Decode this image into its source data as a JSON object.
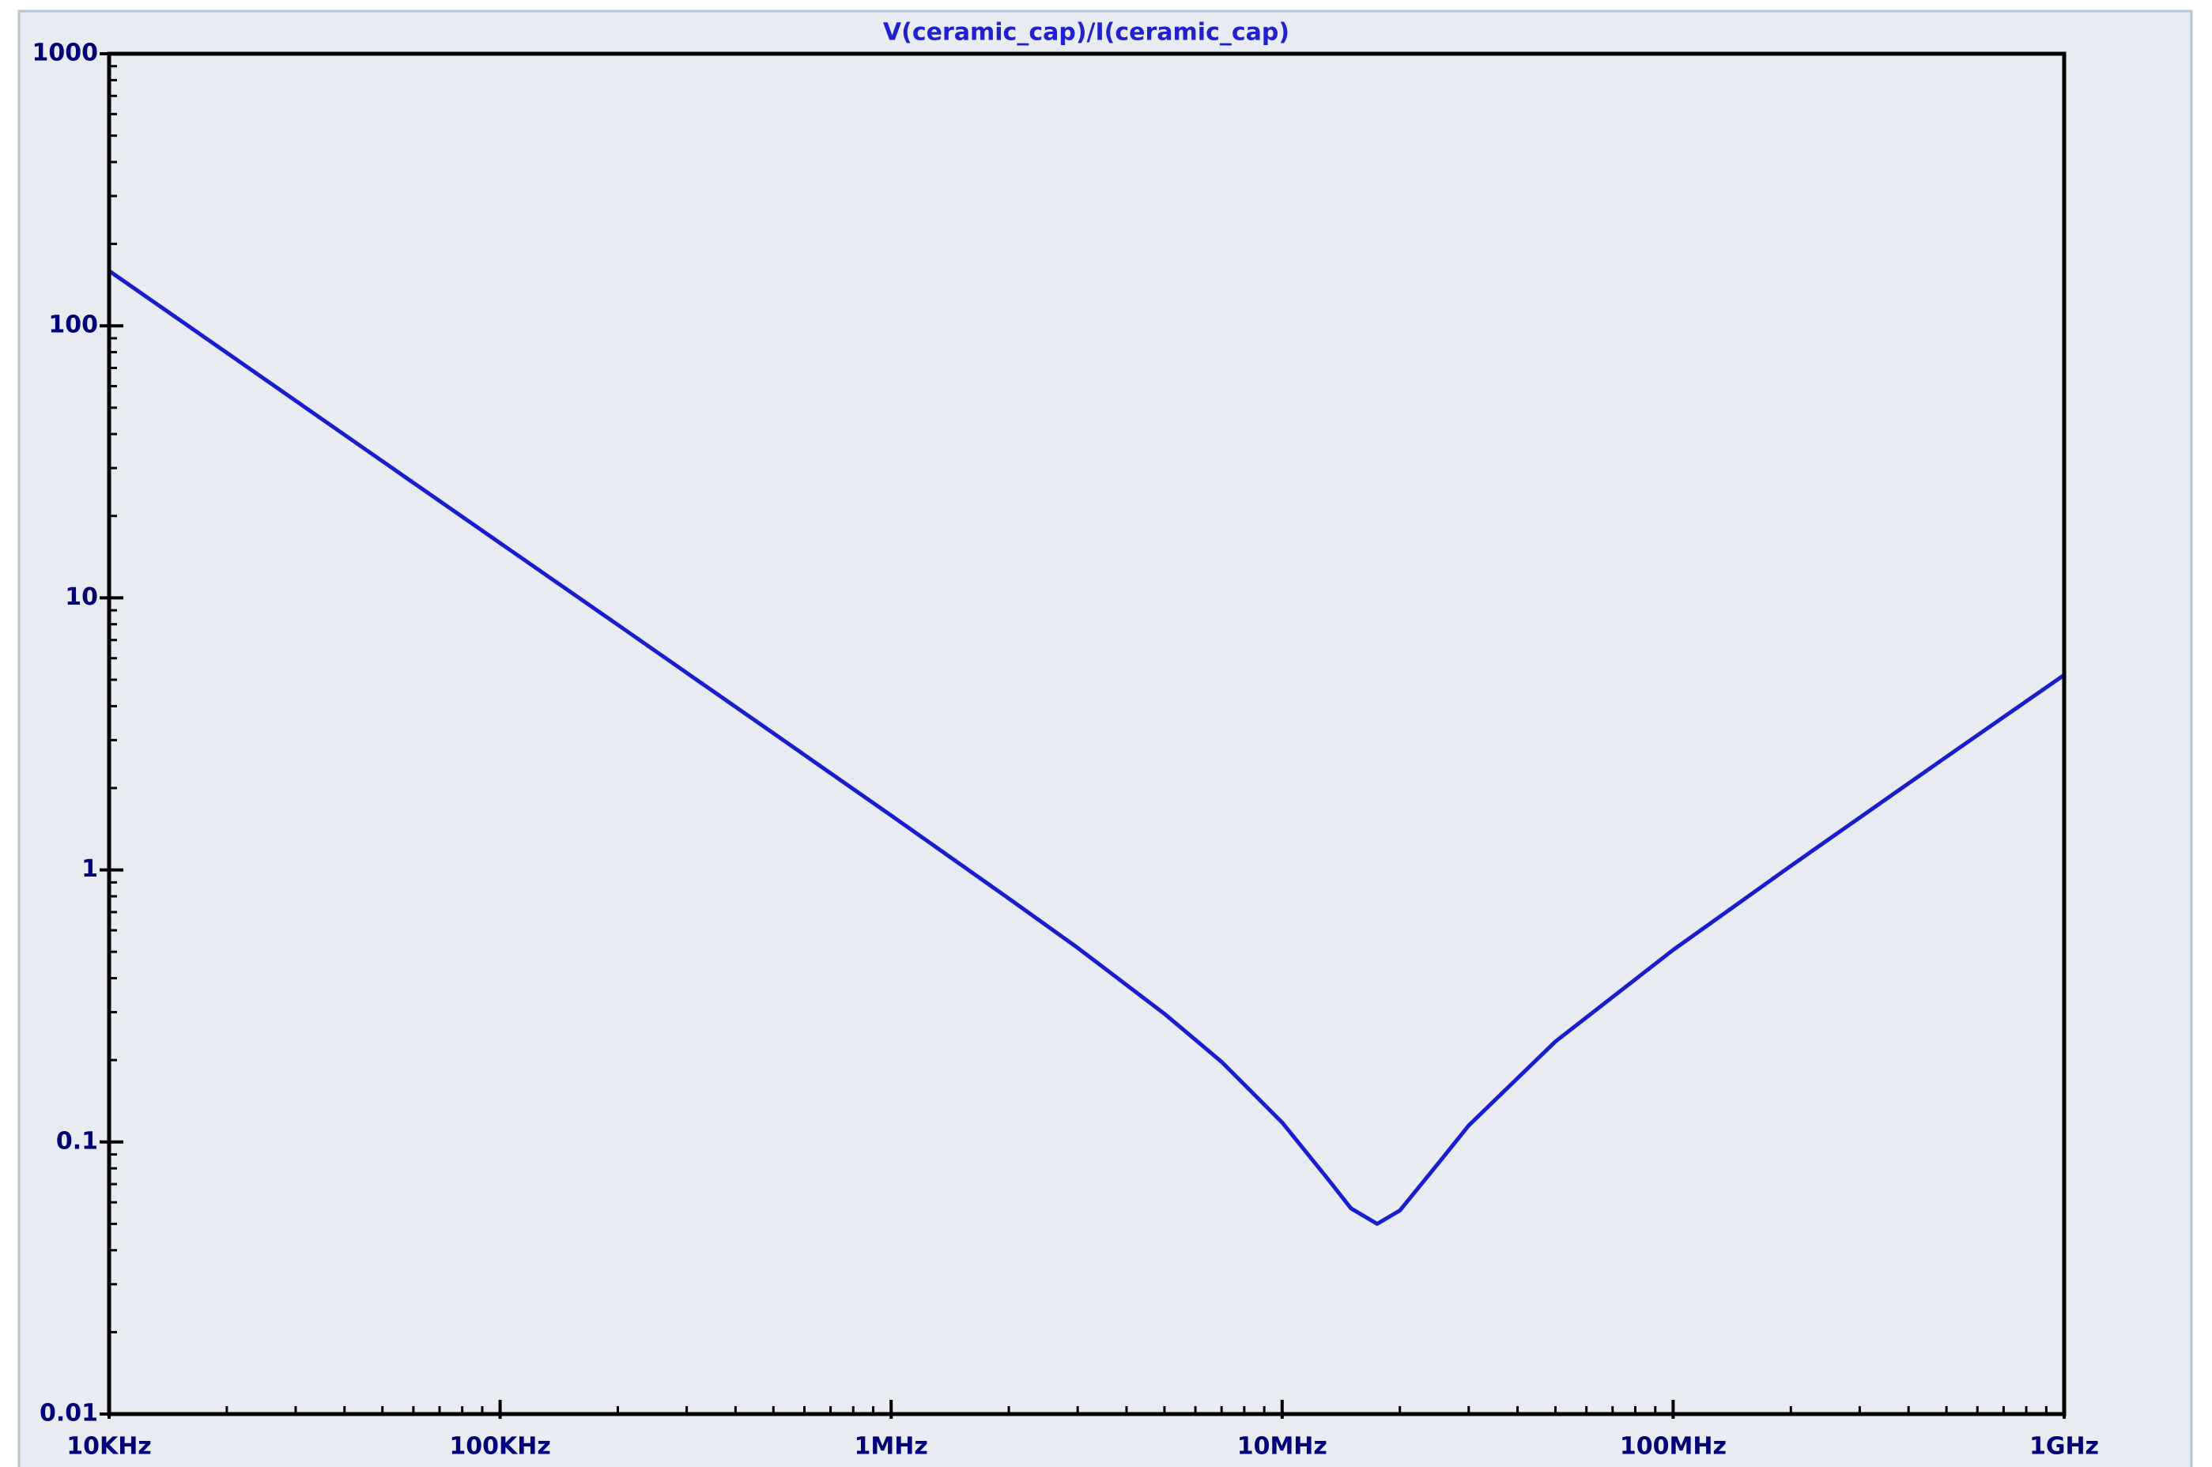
{
  "chart_data": {
    "type": "line",
    "title": "V(ceramic_cap)/I(ceramic_cap)",
    "xscale": "log",
    "yscale": "log",
    "x": [
      10000,
      20000,
      50000,
      100000,
      200000,
      500000,
      1000000,
      2000000,
      3000000,
      5000000,
      7000000,
      10000000,
      13000000,
      15000000,
      17500000,
      20000000,
      25000000,
      30000000,
      50000000,
      100000000,
      200000000,
      500000000,
      1000000000
    ],
    "series": [
      {
        "name": "V(ceramic_cap)/I(ceramic_cap)",
        "color": "#1c1ccf",
        "values": [
          159.2,
          79.6,
          31.8,
          15.9,
          7.96,
          3.18,
          1.586,
          0.785,
          0.517,
          0.296,
          0.197,
          0.118,
          0.074,
          0.057,
          0.05,
          0.056,
          0.083,
          0.115,
          0.234,
          0.508,
          1.035,
          2.605,
          5.21
        ]
      }
    ],
    "xlim": [
      10000,
      1000000000
    ],
    "xticks": [
      {
        "value": 10000,
        "label": "10KHz"
      },
      {
        "value": 100000,
        "label": "100KHz"
      },
      {
        "value": 1000000,
        "label": "1MHz"
      },
      {
        "value": 10000000,
        "label": "10MHz"
      },
      {
        "value": 100000000,
        "label": "100MHz"
      },
      {
        "value": 1000000000,
        "label": "1GHz"
      }
    ],
    "ylim": [
      0.01,
      1000
    ],
    "yticks": [
      0.01,
      0.1,
      1,
      10,
      100,
      1000
    ],
    "grid": false
  }
}
